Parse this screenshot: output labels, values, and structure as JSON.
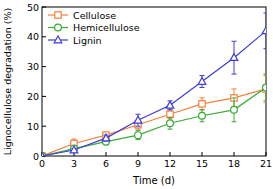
{
  "chart_data": {
    "type": "line",
    "x_label": "Time (d)",
    "y_label": "Lignocellulose degradation (%)",
    "x": [
      0,
      3,
      6,
      9,
      12,
      15,
      18,
      21
    ],
    "xlim": [
      0,
      21
    ],
    "xticks": [
      0,
      3,
      6,
      9,
      12,
      15,
      18,
      21
    ],
    "ylim": [
      0,
      50
    ],
    "yticks": [
      0,
      10,
      20,
      30,
      40,
      50
    ],
    "legend": "upper-left",
    "grid": false,
    "series": [
      {
        "name": "Cellulose",
        "color": "#f5803e",
        "marker": "square",
        "values": [
          0,
          4.2,
          7,
          10.5,
          14,
          17.5,
          19.5,
          22.5
        ],
        "errors": [
          0,
          1.5,
          1,
          1.5,
          1.5,
          2,
          3,
          4.5
        ]
      },
      {
        "name": "Hemicellulose",
        "color": "#3aaa35",
        "marker": "circle",
        "values": [
          0,
          2.5,
          4.8,
          7,
          11,
          13.5,
          15.5,
          23
        ],
        "errors": [
          0,
          0.5,
          1,
          1.5,
          2,
          2,
          4,
          4.5
        ]
      },
      {
        "name": "Lignin",
        "color": "#3c3cdc",
        "marker": "triangle",
        "values": [
          0,
          2,
          6,
          12,
          17,
          25,
          33,
          42
        ],
        "errors": [
          0,
          0.5,
          1,
          2,
          1.5,
          2,
          5.5,
          6
        ]
      }
    ]
  }
}
